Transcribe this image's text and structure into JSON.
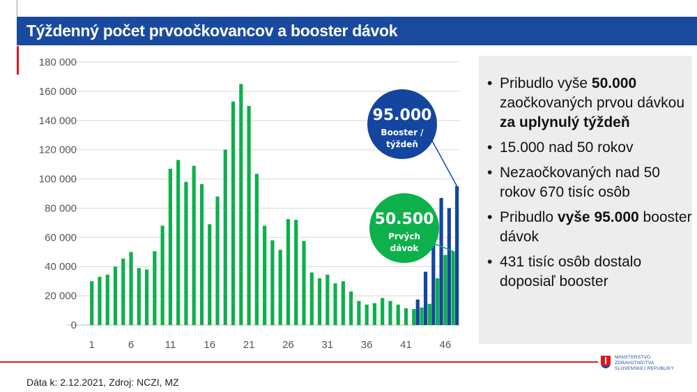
{
  "header": {
    "title": "Týždenný počet prvoočkovancov a booster dávok"
  },
  "chart_data": {
    "type": "bar",
    "title": "",
    "xlabel": "",
    "ylabel": "",
    "ylim": [
      0,
      180000
    ],
    "yticks": [
      "0",
      "20 000",
      "40 000",
      "60 000",
      "80 000",
      "100 000",
      "120 000",
      "140 000",
      "160 000",
      "180 000"
    ],
    "xtick_labels": [
      "1",
      "6",
      "11",
      "16",
      "21",
      "26",
      "31",
      "36",
      "41",
      "46"
    ],
    "grid": true,
    "colors": {
      "first_doses": "#0db04b",
      "booster": "#1446a0"
    },
    "categories": [
      1,
      2,
      3,
      4,
      5,
      6,
      7,
      8,
      9,
      10,
      11,
      12,
      13,
      14,
      15,
      16,
      17,
      18,
      19,
      20,
      21,
      22,
      23,
      24,
      25,
      26,
      27,
      28,
      29,
      30,
      31,
      32,
      33,
      34,
      35,
      36,
      37,
      38,
      39,
      40,
      41,
      42,
      43,
      44,
      45,
      46,
      47
    ],
    "series": [
      {
        "key": "first_doses",
        "values": [
          30000,
          33000,
          34500,
          40000,
          45500,
          50000,
          39000,
          38000,
          50500,
          68000,
          107000,
          113000,
          98000,
          109000,
          96500,
          69000,
          88000,
          120000,
          153000,
          165000,
          150000,
          103500,
          68000,
          58000,
          51500,
          72500,
          72000,
          57500,
          36000,
          32000,
          34500,
          28500,
          30000,
          23000,
          16500,
          14000,
          15000,
          18500,
          16500,
          14000,
          11500,
          11000,
          12000,
          14500,
          32000,
          48000,
          50500
        ]
      },
      {
        "key": "booster",
        "values": [
          null,
          null,
          null,
          null,
          null,
          null,
          null,
          null,
          null,
          null,
          null,
          null,
          null,
          null,
          null,
          null,
          null,
          null,
          null,
          null,
          null,
          null,
          null,
          null,
          null,
          null,
          null,
          null,
          null,
          null,
          null,
          null,
          null,
          null,
          null,
          null,
          null,
          null,
          null,
          null,
          null,
          17500,
          36500,
          60000,
          87000,
          80000,
          95000
        ]
      }
    ],
    "annotations": [
      {
        "value": "95.000",
        "label1": "Booster /",
        "label2": "týždeň",
        "series": "booster",
        "color": "#1446a0"
      },
      {
        "value": "50.500",
        "label1": "Prvých",
        "label2": "dávok",
        "series": "first_doses",
        "color": "#0db04b"
      }
    ]
  },
  "panel": {
    "bullets": [
      {
        "parts": [
          {
            "t": "Pribudlo vyše ",
            "b": false
          },
          {
            "t": "50.000",
            "b": true
          },
          {
            "t": " zaočkovaných prvou dávkou ",
            "b": false
          },
          {
            "t": "za uplynulý týždeň",
            "b": true
          }
        ]
      },
      {
        "parts": [
          {
            "t": "15.000 nad 50 rokov",
            "b": false
          }
        ]
      },
      {
        "parts": [
          {
            "t": "Nezaočkovaných nad 50 rokov 670 tisíc osôb",
            "b": false
          }
        ]
      },
      {
        "parts": [
          {
            "t": "Pribudlo ",
            "b": false
          },
          {
            "t": "vyše 95.000",
            "b": true
          },
          {
            "t": " booster dávok",
            "b": false
          }
        ]
      },
      {
        "parts": [
          {
            "t": "431 tisíc osôb dostalo doposiaľ booster",
            "b": false
          }
        ]
      }
    ]
  },
  "footer": {
    "source": "Dáta k: 2.12.2021, Zdroj: NCZI, MZ"
  },
  "logo": {
    "line1": "MINISTERSTVO",
    "line2": "ZDRAVOTNÍCTVA",
    "line3": "SLOVENSKEJ REPUBLIKY"
  }
}
